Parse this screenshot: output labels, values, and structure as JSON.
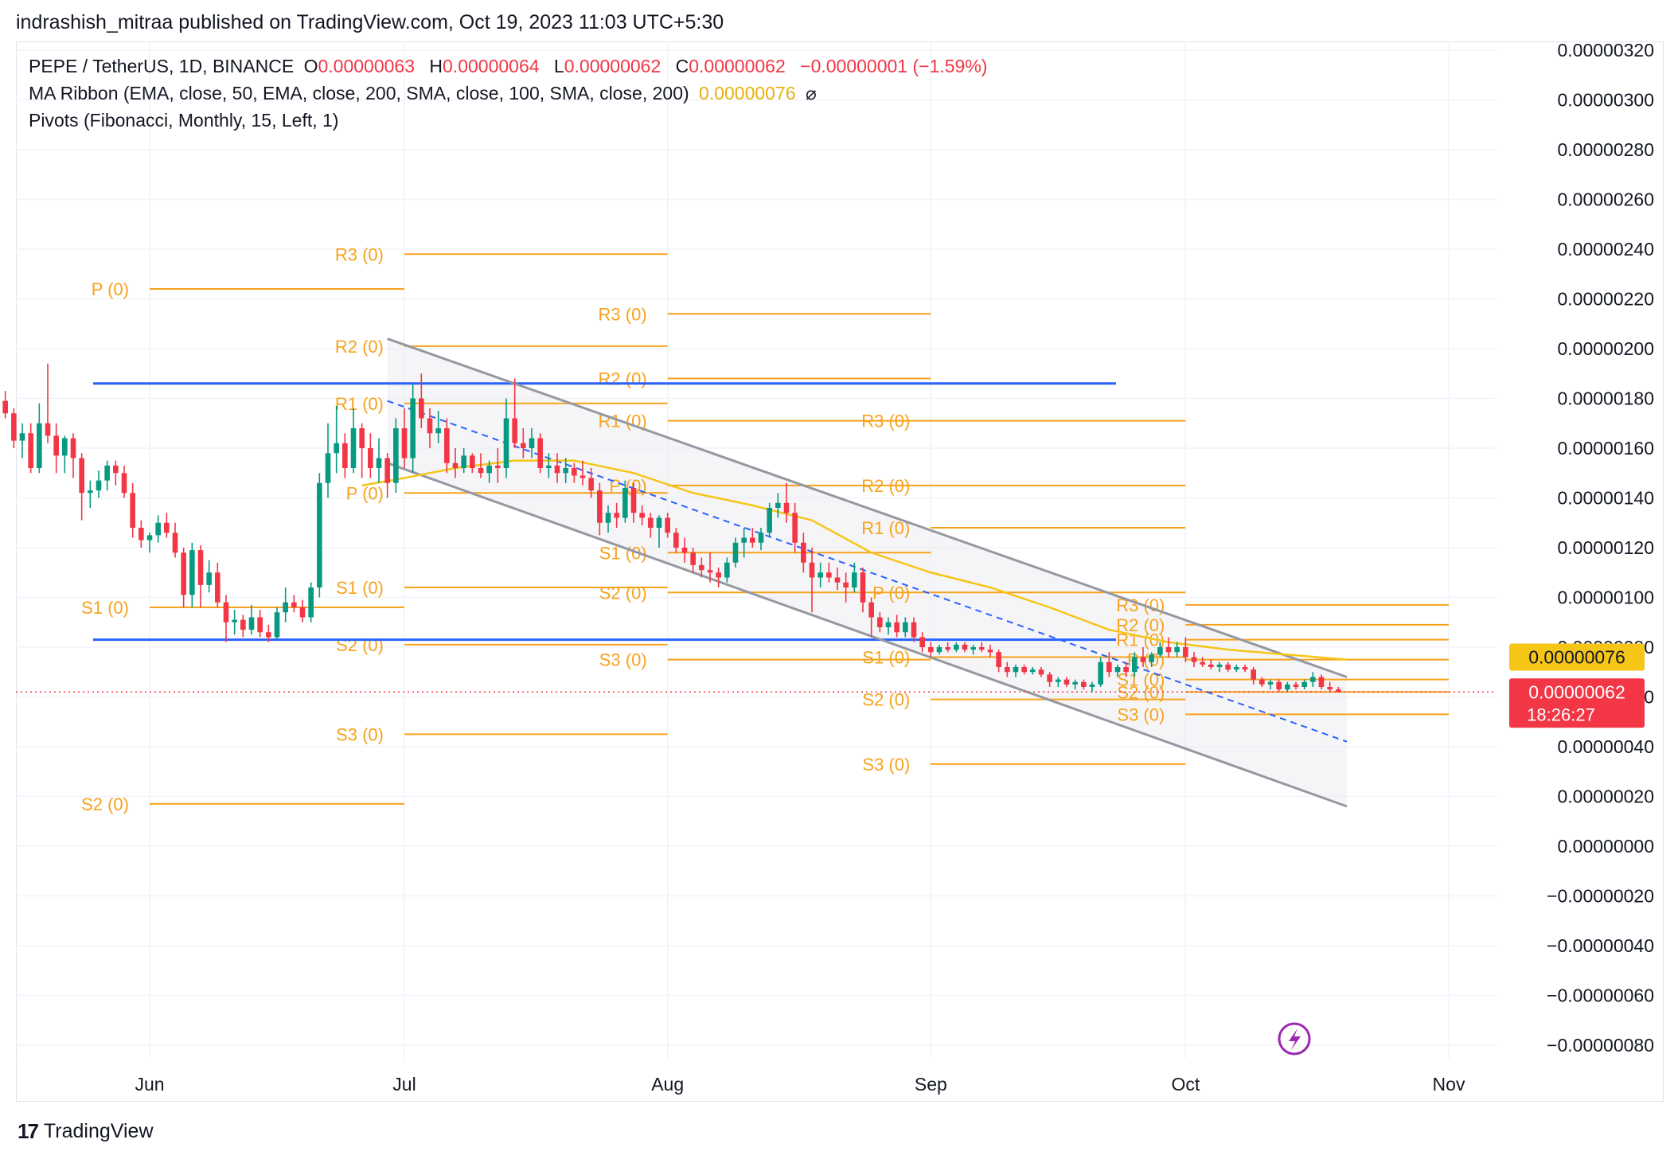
{
  "header": {
    "text": "indrashish_mitraa published on TradingView.com, Oct 19, 2023 11:03 UTC+5:30"
  },
  "legend": {
    "symbol": "PEPE / TetherUS, 1D, BINANCE",
    "o_label": "O",
    "o_value": "0.00000063",
    "h_label": "H",
    "h_value": "0.00000064",
    "l_label": "L",
    "l_value": "0.00000062",
    "c_label": "C",
    "c_value": "0.00000062",
    "change": "−0.00000001 (−1.59%)",
    "ma_ribbon": "MA Ribbon (EMA, close, 50, EMA, close, 200, SMA, close, 100, SMA, close, 200)",
    "ma_value": "0.00000076",
    "ma_icon": "hidden-eye-icon",
    "pivots": "Pivots (Fibonacci, Monthly, 15, Left, 1)"
  },
  "price_badges": {
    "ma": "0.00000076",
    "last": "0.00000062",
    "countdown": "18:26:27"
  },
  "footer": {
    "logo_mark": "17",
    "logo_text": "TradingView"
  },
  "colors": {
    "up": "#089981",
    "down": "#f23645",
    "pivot": "#f7a21b",
    "support_line": "#2962ff",
    "channel": "#9598a1",
    "ma": "#f5c518"
  },
  "chart_data": {
    "type": "candlestick",
    "symbol": "PEPE/USDT",
    "timeframe": "1D",
    "x_tick_labels": [
      "Jun",
      "Jul",
      "Aug",
      "Sep",
      "Oct",
      "Nov"
    ],
    "y_tick_labels": [
      "0.00000320",
      "0.00000300",
      "0.00000280",
      "0.00000260",
      "0.00000240",
      "0.00000220",
      "0.00000200",
      "0.00000180",
      "0.00000160",
      "0.00000140",
      "0.00000120",
      "0.00000100",
      "0.00000080",
      "0.00000060",
      "0.00000040",
      "0.00000020",
      "0.00000000",
      "−0.00000020",
      "−0.00000040",
      "−0.00000060",
      "−0.00000080"
    ],
    "y_range": [
      -8e-07,
      3.2e-06
    ],
    "x_range": [
      "2023-05-14",
      "2023-11-05"
    ],
    "ohlc": [
      [
        "2023-05-15",
        179,
        183,
        172,
        174
      ],
      [
        "2023-05-16",
        174,
        176,
        160,
        163
      ],
      [
        "2023-05-17",
        163,
        170,
        156,
        166
      ],
      [
        "2023-05-18",
        166,
        170,
        150,
        152
      ],
      [
        "2023-05-19",
        152,
        178,
        150,
        170
      ],
      [
        "2023-05-20",
        170,
        194,
        162,
        165
      ],
      [
        "2023-05-21",
        165,
        170,
        150,
        157
      ],
      [
        "2023-05-22",
        157,
        165,
        150,
        164
      ],
      [
        "2023-05-23",
        164,
        166,
        148,
        156
      ],
      [
        "2023-05-24",
        156,
        158,
        131,
        142
      ],
      [
        "2023-05-25",
        142,
        147,
        136,
        143
      ],
      [
        "2023-05-26",
        143,
        151,
        140,
        147
      ],
      [
        "2023-05-27",
        147,
        155,
        143,
        153
      ],
      [
        "2023-05-28",
        153,
        155,
        145,
        150
      ],
      [
        "2023-05-29",
        150,
        153,
        140,
        142
      ],
      [
        "2023-05-30",
        142,
        146,
        124,
        128
      ],
      [
        "2023-05-31",
        128,
        131,
        120,
        123
      ],
      [
        "2023-06-01",
        123,
        126,
        118,
        125
      ],
      [
        "2023-06-02",
        125,
        133,
        122,
        130
      ],
      [
        "2023-06-03",
        130,
        134,
        124,
        126
      ],
      [
        "2023-06-04",
        126,
        130,
        116,
        118
      ],
      [
        "2023-06-05",
        118,
        120,
        96,
        101
      ],
      [
        "2023-06-06",
        101,
        122,
        96,
        119
      ],
      [
        "2023-06-07",
        119,
        121,
        96,
        105
      ],
      [
        "2023-06-08",
        105,
        115,
        102,
        110
      ],
      [
        "2023-06-09",
        110,
        114,
        96,
        98
      ],
      [
        "2023-06-10",
        98,
        101,
        82,
        90
      ],
      [
        "2023-06-11",
        90,
        95,
        85,
        91
      ],
      [
        "2023-06-12",
        91,
        93,
        84,
        87
      ],
      [
        "2023-06-13",
        87,
        97,
        85,
        92
      ],
      [
        "2023-06-14",
        92,
        95,
        84,
        86
      ],
      [
        "2023-06-15",
        86,
        89,
        82,
        84
      ],
      [
        "2023-06-16",
        84,
        96,
        83,
        94
      ],
      [
        "2023-06-17",
        94,
        104,
        90,
        98
      ],
      [
        "2023-06-18",
        98,
        101,
        94,
        96
      ],
      [
        "2023-06-19",
        96,
        99,
        90,
        92
      ],
      [
        "2023-06-20",
        92,
        106,
        90,
        104
      ],
      [
        "2023-06-21",
        104,
        150,
        100,
        146
      ],
      [
        "2023-06-22",
        146,
        170,
        140,
        158
      ],
      [
        "2023-06-23",
        158,
        177,
        150,
        162
      ],
      [
        "2023-06-24",
        162,
        166,
        148,
        152
      ],
      [
        "2023-06-25",
        152,
        176,
        150,
        168
      ],
      [
        "2023-06-26",
        168,
        170,
        148,
        160
      ],
      [
        "2023-06-27",
        160,
        166,
        148,
        152
      ],
      [
        "2023-06-28",
        152,
        164,
        146,
        156
      ],
      [
        "2023-06-29",
        156,
        158,
        140,
        146
      ],
      [
        "2023-06-30",
        146,
        172,
        142,
        168
      ],
      [
        "2023-07-01",
        168,
        176,
        152,
        156
      ],
      [
        "2023-07-02",
        156,
        186,
        150,
        180
      ],
      [
        "2023-07-03",
        180,
        190,
        168,
        172
      ],
      [
        "2023-07-04",
        172,
        176,
        160,
        166
      ],
      [
        "2023-07-05",
        166,
        175,
        162,
        168
      ],
      [
        "2023-07-06",
        168,
        172,
        150,
        154
      ],
      [
        "2023-07-07",
        154,
        160,
        148,
        152
      ],
      [
        "2023-07-08",
        152,
        160,
        150,
        157
      ],
      [
        "2023-07-09",
        157,
        158,
        150,
        152
      ],
      [
        "2023-07-10",
        152,
        158,
        148,
        150
      ],
      [
        "2023-07-11",
        150,
        155,
        146,
        153
      ],
      [
        "2023-07-12",
        153,
        160,
        146,
        152
      ],
      [
        "2023-07-13",
        152,
        180,
        148,
        172
      ],
      [
        "2023-07-14",
        172,
        188,
        160,
        162
      ],
      [
        "2023-07-15",
        162,
        168,
        156,
        160
      ],
      [
        "2023-07-16",
        160,
        168,
        156,
        164
      ],
      [
        "2023-07-17",
        164,
        166,
        150,
        152
      ],
      [
        "2023-07-18",
        152,
        158,
        148,
        153
      ],
      [
        "2023-07-19",
        153,
        158,
        146,
        150
      ],
      [
        "2023-07-20",
        150,
        156,
        146,
        152
      ],
      [
        "2023-07-21",
        152,
        154,
        146,
        149
      ],
      [
        "2023-07-22",
        149,
        155,
        145,
        148
      ],
      [
        "2023-07-23",
        148,
        152,
        140,
        143
      ],
      [
        "2023-07-24",
        143,
        146,
        125,
        130
      ],
      [
        "2023-07-25",
        130,
        137,
        126,
        134
      ],
      [
        "2023-07-26",
        134,
        138,
        128,
        132
      ],
      [
        "2023-07-27",
        132,
        147,
        130,
        144
      ],
      [
        "2023-07-28",
        144,
        146,
        130,
        134
      ],
      [
        "2023-07-29",
        134,
        137,
        129,
        132
      ],
      [
        "2023-07-30",
        132,
        134,
        124,
        128
      ],
      [
        "2023-07-31",
        128,
        133,
        120,
        132
      ],
      [
        "2023-08-01",
        132,
        134,
        124,
        126
      ],
      [
        "2023-08-02",
        126,
        128,
        118,
        120
      ],
      [
        "2023-08-03",
        120,
        124,
        114,
        118
      ],
      [
        "2023-08-04",
        118,
        120,
        110,
        113
      ],
      [
        "2023-08-05",
        113,
        116,
        108,
        111
      ],
      [
        "2023-08-06",
        111,
        118,
        106,
        110
      ],
      [
        "2023-08-07",
        110,
        112,
        104,
        108
      ],
      [
        "2023-08-08",
        108,
        116,
        106,
        114
      ],
      [
        "2023-08-09",
        114,
        124,
        112,
        122
      ],
      [
        "2023-08-10",
        122,
        128,
        116,
        124
      ],
      [
        "2023-08-11",
        124,
        128,
        120,
        122
      ],
      [
        "2023-08-12",
        122,
        128,
        119,
        126
      ],
      [
        "2023-08-13",
        126,
        138,
        124,
        136
      ],
      [
        "2023-08-14",
        136,
        142,
        132,
        138
      ],
      [
        "2023-08-15",
        138,
        146,
        130,
        134
      ],
      [
        "2023-08-16",
        134,
        138,
        118,
        122
      ],
      [
        "2023-08-17",
        122,
        126,
        110,
        114
      ],
      [
        "2023-08-18",
        114,
        120,
        94,
        108
      ],
      [
        "2023-08-19",
        108,
        114,
        104,
        110
      ],
      [
        "2023-08-20",
        110,
        114,
        106,
        108
      ],
      [
        "2023-08-21",
        108,
        112,
        103,
        106
      ],
      [
        "2023-08-22",
        106,
        110,
        98,
        104
      ],
      [
        "2023-08-23",
        104,
        114,
        102,
        110
      ],
      [
        "2023-08-24",
        110,
        112,
        94,
        98
      ],
      [
        "2023-08-25",
        98,
        100,
        84,
        92
      ],
      [
        "2023-08-26",
        92,
        94,
        86,
        88
      ],
      [
        "2023-08-27",
        88,
        92,
        85,
        90
      ],
      [
        "2023-08-28",
        90,
        93,
        84,
        86
      ],
      [
        "2023-08-29",
        86,
        92,
        84,
        90
      ],
      [
        "2023-08-30",
        90,
        92,
        82,
        84
      ],
      [
        "2023-08-31",
        84,
        86,
        78,
        80
      ],
      [
        "2023-09-01",
        80,
        82,
        76,
        78
      ],
      [
        "2023-09-02",
        78,
        81,
        77,
        80
      ],
      [
        "2023-09-03",
        80,
        82,
        78,
        79
      ],
      [
        "2023-09-04",
        79,
        82,
        78,
        81
      ],
      [
        "2023-09-05",
        81,
        82,
        78,
        79
      ],
      [
        "2023-09-06",
        79,
        81,
        77,
        80
      ],
      [
        "2023-09-07",
        80,
        82,
        78,
        79
      ],
      [
        "2023-09-08",
        79,
        81,
        76,
        78
      ],
      [
        "2023-09-09",
        78,
        79,
        70,
        72
      ],
      [
        "2023-09-10",
        72,
        74,
        68,
        70
      ],
      [
        "2023-09-11",
        70,
        73,
        68,
        72
      ],
      [
        "2023-09-12",
        72,
        73,
        69,
        70
      ],
      [
        "2023-09-13",
        70,
        72,
        69,
        71
      ],
      [
        "2023-09-14",
        71,
        72,
        68,
        69
      ],
      [
        "2023-09-15",
        69,
        70,
        64,
        66
      ],
      [
        "2023-09-16",
        66,
        68,
        64,
        67
      ],
      [
        "2023-09-17",
        67,
        68,
        64,
        65
      ],
      [
        "2023-09-18",
        65,
        67,
        63,
        66
      ],
      [
        "2023-09-19",
        66,
        67,
        63,
        64
      ],
      [
        "2023-09-20",
        64,
        66,
        62,
        65
      ],
      [
        "2023-09-21",
        65,
        76,
        64,
        74
      ],
      [
        "2023-09-22",
        74,
        78,
        68,
        70
      ],
      [
        "2023-09-23",
        70,
        73,
        68,
        72
      ],
      [
        "2023-09-24",
        72,
        74,
        68,
        70
      ],
      [
        "2023-09-25",
        70,
        78,
        68,
        76
      ],
      [
        "2023-09-26",
        76,
        80,
        72,
        74
      ],
      [
        "2023-09-27",
        74,
        78,
        72,
        77
      ],
      [
        "2023-09-28",
        77,
        82,
        76,
        80
      ],
      [
        "2023-09-29",
        80,
        84,
        76,
        78
      ],
      [
        "2023-09-30",
        78,
        82,
        76,
        80
      ],
      [
        "2023-10-01",
        80,
        84,
        74,
        76
      ],
      [
        "2023-10-02",
        76,
        78,
        72,
        74
      ],
      [
        "2023-10-03",
        74,
        76,
        72,
        73
      ],
      [
        "2023-10-04",
        73,
        75,
        71,
        72
      ],
      [
        "2023-10-05",
        72,
        74,
        70,
        73
      ],
      [
        "2023-10-06",
        73,
        74,
        70,
        71
      ],
      [
        "2023-10-07",
        71,
        73,
        70,
        72
      ],
      [
        "2023-10-08",
        72,
        73,
        70,
        71
      ],
      [
        "2023-10-09",
        71,
        72,
        65,
        67
      ],
      [
        "2023-10-10",
        67,
        68,
        64,
        65
      ],
      [
        "2023-10-11",
        65,
        67,
        63,
        66
      ],
      [
        "2023-10-12",
        66,
        67,
        62,
        63
      ],
      [
        "2023-10-13",
        63,
        66,
        62,
        65
      ],
      [
        "2023-10-14",
        65,
        66,
        63,
        64
      ],
      [
        "2023-10-15",
        64,
        67,
        63,
        66
      ],
      [
        "2023-10-16",
        66,
        70,
        64,
        68
      ],
      [
        "2023-10-17",
        68,
        69,
        63,
        64
      ],
      [
        "2023-10-18",
        64,
        66,
        62,
        63
      ],
      [
        "2023-10-19",
        63,
        64,
        62,
        62
      ]
    ],
    "ohlc_unit": "1e-8 USDT",
    "ma_ribbon": [
      [
        "2023-06-26",
        145
      ],
      [
        "2023-07-01",
        148
      ],
      [
        "2023-07-07",
        152
      ],
      [
        "2023-07-14",
        155
      ],
      [
        "2023-07-21",
        155
      ],
      [
        "2023-07-28",
        150
      ],
      [
        "2023-08-04",
        142
      ],
      [
        "2023-08-11",
        137
      ],
      [
        "2023-08-18",
        131
      ],
      [
        "2023-08-25",
        118
      ],
      [
        "2023-09-01",
        110
      ],
      [
        "2023-09-08",
        104
      ],
      [
        "2023-09-15",
        96
      ],
      [
        "2023-09-22",
        87
      ],
      [
        "2023-09-29",
        82
      ],
      [
        "2023-10-06",
        79
      ],
      [
        "2023-10-13",
        77
      ],
      [
        "2023-10-20",
        75
      ]
    ],
    "horizontal_lines": [
      1.86e-06,
      8.3e-07
    ],
    "channel": {
      "upper": [
        [
          "2023-06-29",
          2.04e-06
        ],
        [
          "2023-10-20",
          6.8e-07
        ]
      ],
      "lower": [
        [
          "2023-06-29",
          1.54e-06
        ],
        [
          "2023-10-20",
          1.6e-07
        ]
      ],
      "mid": [
        [
          "2023-06-29",
          1.79e-06
        ],
        [
          "2023-10-20",
          4.2e-07
        ]
      ]
    },
    "pivots": [
      {
        "from": "2023-06-01",
        "to": "2023-07-01",
        "levels": [
          [
            "P (0)",
            2.24e-06
          ],
          [
            "S1 (0)",
            9.6e-07
          ],
          [
            "S2 (0)",
            1.7e-07
          ]
        ]
      },
      {
        "from": "2023-07-01",
        "to": "2023-08-01",
        "levels": [
          [
            "R3 (0)",
            2.38e-06
          ],
          [
            "R2 (0)",
            2.01e-06
          ],
          [
            "R1 (0)",
            1.78e-06
          ],
          [
            "P (0)",
            1.42e-06
          ],
          [
            "S1 (0)",
            1.04e-06
          ],
          [
            "S2 (0)",
            8.1e-07
          ],
          [
            "S3 (0)",
            4.5e-07
          ]
        ]
      },
      {
        "from": "2023-08-01",
        "to": "2023-09-01",
        "levels": [
          [
            "R3 (0)",
            2.14e-06
          ],
          [
            "R2 (0)",
            1.88e-06
          ],
          [
            "R1 (0)",
            1.71e-06
          ],
          [
            "P (0)",
            1.45e-06
          ],
          [
            "S1 (0)",
            1.18e-06
          ],
          [
            "S2 (0)",
            1.02e-06
          ],
          [
            "S3 (0)",
            7.5e-07
          ]
        ]
      },
      {
        "from": "2023-09-01",
        "to": "2023-10-01",
        "levels": [
          [
            "R3 (0)",
            1.71e-06
          ],
          [
            "R2 (0)",
            1.45e-06
          ],
          [
            "R1 (0)",
            1.28e-06
          ],
          [
            "P (0)",
            1.02e-06
          ],
          [
            "S1 (0)",
            7.6e-07
          ],
          [
            "S2 (0)",
            5.9e-07
          ],
          [
            "S3 (0)",
            3.3e-07
          ]
        ]
      },
      {
        "from": "2023-10-01",
        "to": "2023-11-01",
        "levels": [
          [
            "R3 (0)",
            9.7e-07
          ],
          [
            "R2 (0)",
            8.9e-07
          ],
          [
            "R1 (0)",
            8.3e-07
          ],
          [
            "P (0)",
            7.5e-07
          ],
          [
            "S1 (0)",
            6.7e-07
          ],
          [
            "S2 (0)",
            6.2e-07
          ],
          [
            "S3 (0)",
            5.3e-07
          ]
        ]
      }
    ]
  }
}
